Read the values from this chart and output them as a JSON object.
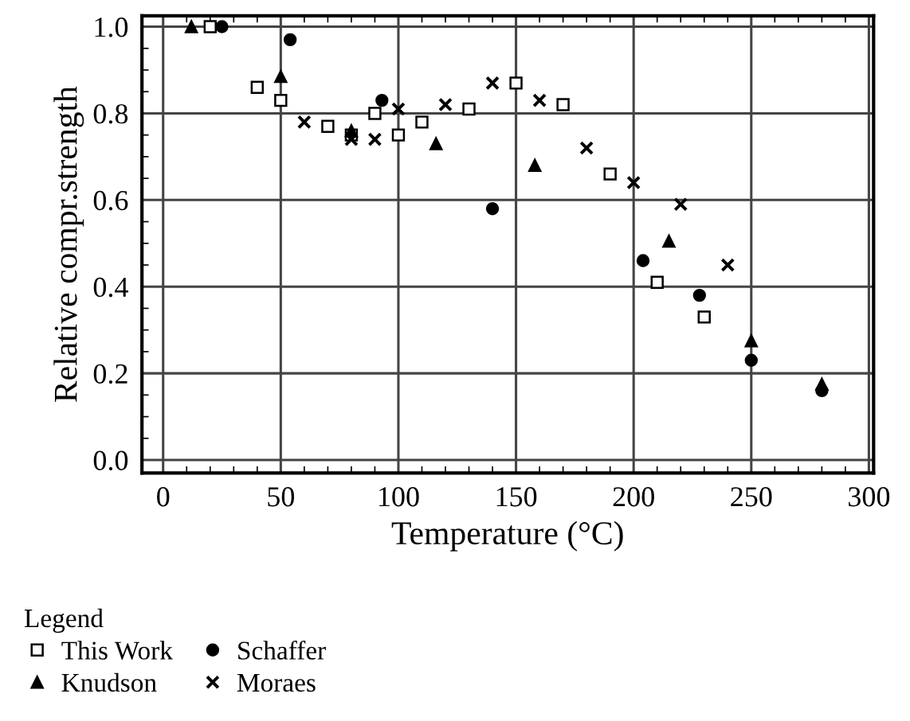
{
  "chart_data": {
    "type": "scatter",
    "xlabel": "Temperature (°C)",
    "ylabel": "Relative compr.strength",
    "legend_title": "Legend",
    "xlim": [
      -9,
      302
    ],
    "ylim": [
      -0.03,
      1.025
    ],
    "xticks": [
      0,
      50,
      100,
      150,
      200,
      250,
      300
    ],
    "yticks": [
      {
        "value": 0,
        "label": "0.0"
      },
      0.2,
      0.4,
      0.6,
      0.8,
      {
        "value": 1,
        "label": "1.0"
      }
    ],
    "grid": true,
    "legend": "bottom left",
    "series": [
      {
        "name": "This Work",
        "color": "#000000",
        "marker": "square",
        "x": [
          20,
          40,
          50,
          70,
          80,
          90,
          100,
          110,
          130,
          150,
          170,
          190,
          210,
          230
        ],
        "values": [
          1.0,
          0.86,
          0.83,
          0.77,
          0.75,
          0.8,
          0.75,
          0.78,
          0.81,
          0.87,
          0.82,
          0.66,
          0.41,
          0.33
        ]
      },
      {
        "name": "Knudson",
        "color": "#000000",
        "marker": "triangle",
        "x": [
          12,
          50,
          80,
          116,
          158,
          215,
          250,
          280
        ],
        "values": [
          1.0,
          0.885,
          0.76,
          0.73,
          0.68,
          0.505,
          0.275,
          0.175
        ]
      },
      {
        "name": "Schaffer",
        "color": "#000000",
        "marker": "circle",
        "x": [
          25,
          54,
          93,
          140,
          204,
          228,
          250,
          280
        ],
        "values": [
          1.0,
          0.97,
          0.83,
          0.58,
          0.46,
          0.38,
          0.23,
          0.16
        ]
      },
      {
        "name": "Moraes",
        "color": "#000000",
        "marker": "cross",
        "x": [
          60,
          80,
          90,
          100,
          120,
          140,
          160,
          180,
          200,
          220,
          240
        ],
        "values": [
          0.78,
          0.74,
          0.74,
          0.81,
          0.82,
          0.87,
          0.83,
          0.72,
          0.64,
          0.59,
          0.45
        ]
      }
    ]
  }
}
